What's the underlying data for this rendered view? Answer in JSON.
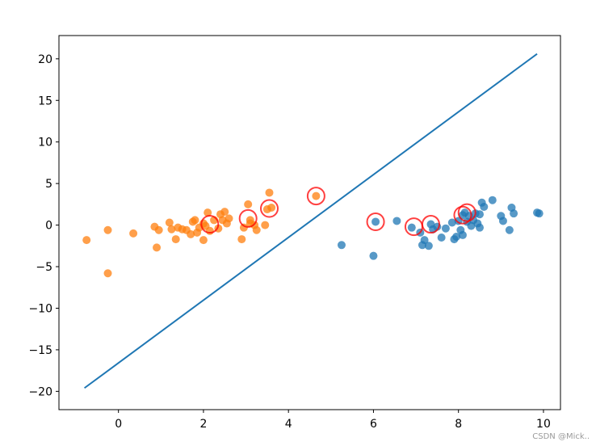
{
  "chart_data": {
    "type": "scatter",
    "title": "",
    "xlabel": "",
    "ylabel": "",
    "xlim": [
      -1.4,
      10.4
    ],
    "ylim": [
      -22.2,
      22.8
    ],
    "x_ticks": [
      0,
      2,
      4,
      6,
      8,
      10
    ],
    "y_ticks": [
      -20,
      -15,
      -10,
      -5,
      0,
      5,
      10,
      15,
      20
    ],
    "x_tick_labels": [
      "0",
      "2",
      "4",
      "6",
      "8",
      "10"
    ],
    "y_tick_labels": [
      "−20",
      "−15",
      "−10",
      "−5",
      "0",
      "5",
      "10",
      "15",
      "20"
    ],
    "grid": false,
    "legend": "none",
    "colors": {
      "class_a": "#1f77b4",
      "class_b": "#ff7f0e",
      "line": "#1f77b4",
      "support_vectors": "#ff0000"
    },
    "series": [
      {
        "kind": "points",
        "color_key": "class_a",
        "points": [
          [
            5.25,
            -2.4
          ],
          [
            6.0,
            -3.7
          ],
          [
            6.05,
            0.4
          ],
          [
            6.55,
            0.5
          ],
          [
            6.9,
            -0.3
          ],
          [
            7.1,
            -0.9
          ],
          [
            7.15,
            -2.4
          ],
          [
            7.2,
            -1.8
          ],
          [
            7.3,
            -2.5
          ],
          [
            7.35,
            0.1
          ],
          [
            7.4,
            -0.5
          ],
          [
            7.5,
            -0.2
          ],
          [
            7.6,
            -1.5
          ],
          [
            7.7,
            -0.4
          ],
          [
            7.85,
            0.3
          ],
          [
            7.9,
            -1.7
          ],
          [
            7.95,
            -1.4
          ],
          [
            8.0,
            0.5
          ],
          [
            8.05,
            -0.6
          ],
          [
            8.1,
            1.2
          ],
          [
            8.15,
            1.5
          ],
          [
            8.2,
            0.4
          ],
          [
            8.25,
            1.1
          ],
          [
            8.3,
            -0.1
          ],
          [
            8.35,
            0.6
          ],
          [
            8.4,
            1.4
          ],
          [
            8.5,
            1.3
          ],
          [
            8.55,
            2.7
          ],
          [
            8.6,
            2.2
          ],
          [
            8.5,
            -0.3
          ],
          [
            8.8,
            3.0
          ],
          [
            9.0,
            1.1
          ],
          [
            9.05,
            0.5
          ],
          [
            9.2,
            -0.6
          ],
          [
            9.25,
            2.1
          ],
          [
            9.3,
            1.4
          ],
          [
            9.85,
            1.5
          ],
          [
            9.9,
            1.4
          ],
          [
            8.1,
            -1.2
          ],
          [
            8.45,
            0.2
          ]
        ]
      },
      {
        "kind": "points",
        "color_key": "class_b",
        "points": [
          [
            -0.75,
            -1.8
          ],
          [
            -0.25,
            -0.6
          ],
          [
            -0.25,
            -5.8
          ],
          [
            0.35,
            -1.0
          ],
          [
            0.85,
            -0.2
          ],
          [
            0.9,
            -2.7
          ],
          [
            0.95,
            -0.6
          ],
          [
            1.2,
            0.3
          ],
          [
            1.25,
            -0.5
          ],
          [
            1.35,
            -1.7
          ],
          [
            1.4,
            -0.3
          ],
          [
            1.5,
            -0.5
          ],
          [
            1.6,
            -0.6
          ],
          [
            1.7,
            -1.1
          ],
          [
            1.75,
            0.4
          ],
          [
            1.8,
            0.6
          ],
          [
            1.85,
            -0.9
          ],
          [
            1.9,
            -0.3
          ],
          [
            2.0,
            -1.8
          ],
          [
            2.0,
            0.2
          ],
          [
            2.05,
            -0.1
          ],
          [
            2.1,
            1.5
          ],
          [
            2.15,
            -0.7
          ],
          [
            2.25,
            0.6
          ],
          [
            2.35,
            -0.4
          ],
          [
            2.4,
            1.3
          ],
          [
            2.45,
            0.6
          ],
          [
            2.5,
            1.6
          ],
          [
            2.6,
            0.8
          ],
          [
            2.55,
            0.2
          ],
          [
            2.9,
            -1.7
          ],
          [
            2.95,
            -0.3
          ],
          [
            3.05,
            2.5
          ],
          [
            3.1,
            0.6
          ],
          [
            3.2,
            0.0
          ],
          [
            3.25,
            -0.6
          ],
          [
            3.45,
            0.0
          ],
          [
            3.5,
            1.9
          ],
          [
            3.55,
            3.9
          ],
          [
            3.6,
            2.1
          ],
          [
            4.65,
            3.5
          ],
          [
            3.1,
            0.2
          ]
        ]
      },
      {
        "kind": "line",
        "color_key": "line",
        "points": [
          [
            -0.8,
            -19.6
          ],
          [
            9.85,
            20.6
          ]
        ]
      },
      {
        "kind": "circles",
        "color_key": "support_vectors",
        "points": [
          [
            2.15,
            0.1
          ],
          [
            3.05,
            0.8
          ],
          [
            3.55,
            2.0
          ],
          [
            4.65,
            3.5
          ],
          [
            6.05,
            0.4
          ],
          [
            6.95,
            -0.2
          ],
          [
            7.35,
            0.1
          ],
          [
            8.1,
            1.2
          ],
          [
            8.2,
            1.5
          ]
        ]
      }
    ]
  },
  "watermark": "CSDN @Mick.."
}
